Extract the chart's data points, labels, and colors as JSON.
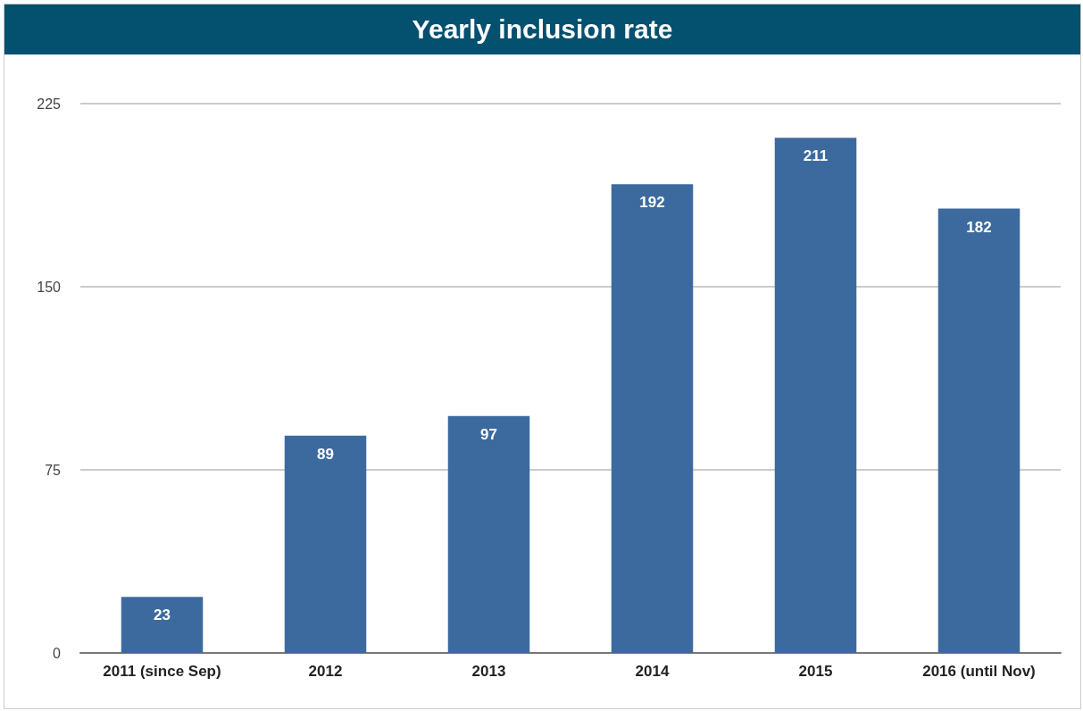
{
  "chart_data": {
    "type": "bar",
    "title": "Yearly inclusion rate",
    "categories": [
      "2011 (since Sep)",
      "2012",
      "2013",
      "2014",
      "2015",
      "2016 (until Nov)"
    ],
    "values": [
      23,
      89,
      97,
      192,
      211,
      182
    ],
    "color": "#3d6a9e",
    "ylim": [
      0,
      225
    ],
    "yticks": [
      0,
      75,
      150,
      225
    ],
    "grid": "y",
    "data_labels": true
  }
}
